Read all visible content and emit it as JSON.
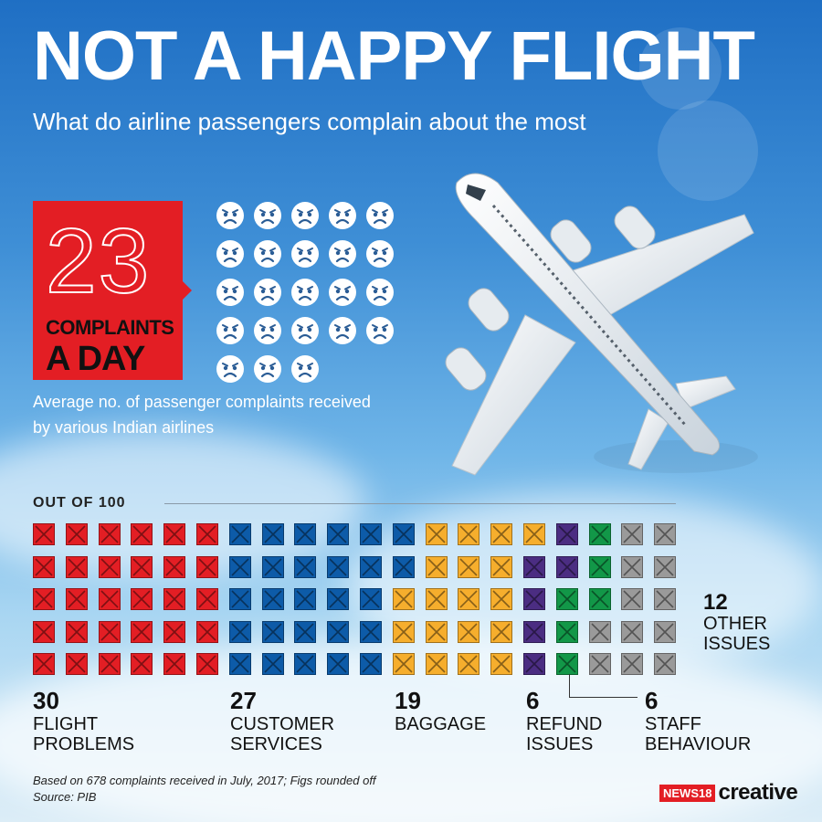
{
  "header": {
    "title": "NOT A HAPPY FLIGHT",
    "subtitle": "What do airline passengers complain about the most"
  },
  "daily": {
    "number": "23",
    "line1": "COMPLAINTS",
    "line2": "A DAY",
    "description": "Average no. of passenger complaints received by various Indian airlines",
    "face_count": 23,
    "face_icon": "sad-face-icon"
  },
  "chart_labels": {
    "out_of": "OUT OF 100"
  },
  "chart_data": {
    "type": "waffle",
    "total": 100,
    "categories": [
      {
        "value": "30",
        "count": 30,
        "label_line1": "FLIGHT",
        "label_line2": "PROBLEMS",
        "color": "#e31e24"
      },
      {
        "value": "27",
        "count": 27,
        "label_line1": "CUSTOMER",
        "label_line2": "SERVICES",
        "color": "#0d5ba8"
      },
      {
        "value": "19",
        "count": 19,
        "label_line1": "BAGGAGE",
        "label_line2": "",
        "color": "#f6ae2d"
      },
      {
        "value": "6",
        "count": 6,
        "label_line1": "REFUND",
        "label_line2": "ISSUES",
        "color": "#4b2d82"
      },
      {
        "value": "6",
        "count": 6,
        "label_line1": "STAFF",
        "label_line2": "BEHAVIOUR",
        "color": "#129748"
      },
      {
        "value": "12",
        "count": 12,
        "label_line1": "OTHER",
        "label_line2": "ISSUES",
        "color": "#9a9a9a"
      }
    ]
  },
  "footer": {
    "note": "Based on 678 complaints received in July, 2017; Figs rounded off",
    "source": "Source: PIB",
    "logo_news": "NEWS18",
    "logo_creative": "creative"
  }
}
